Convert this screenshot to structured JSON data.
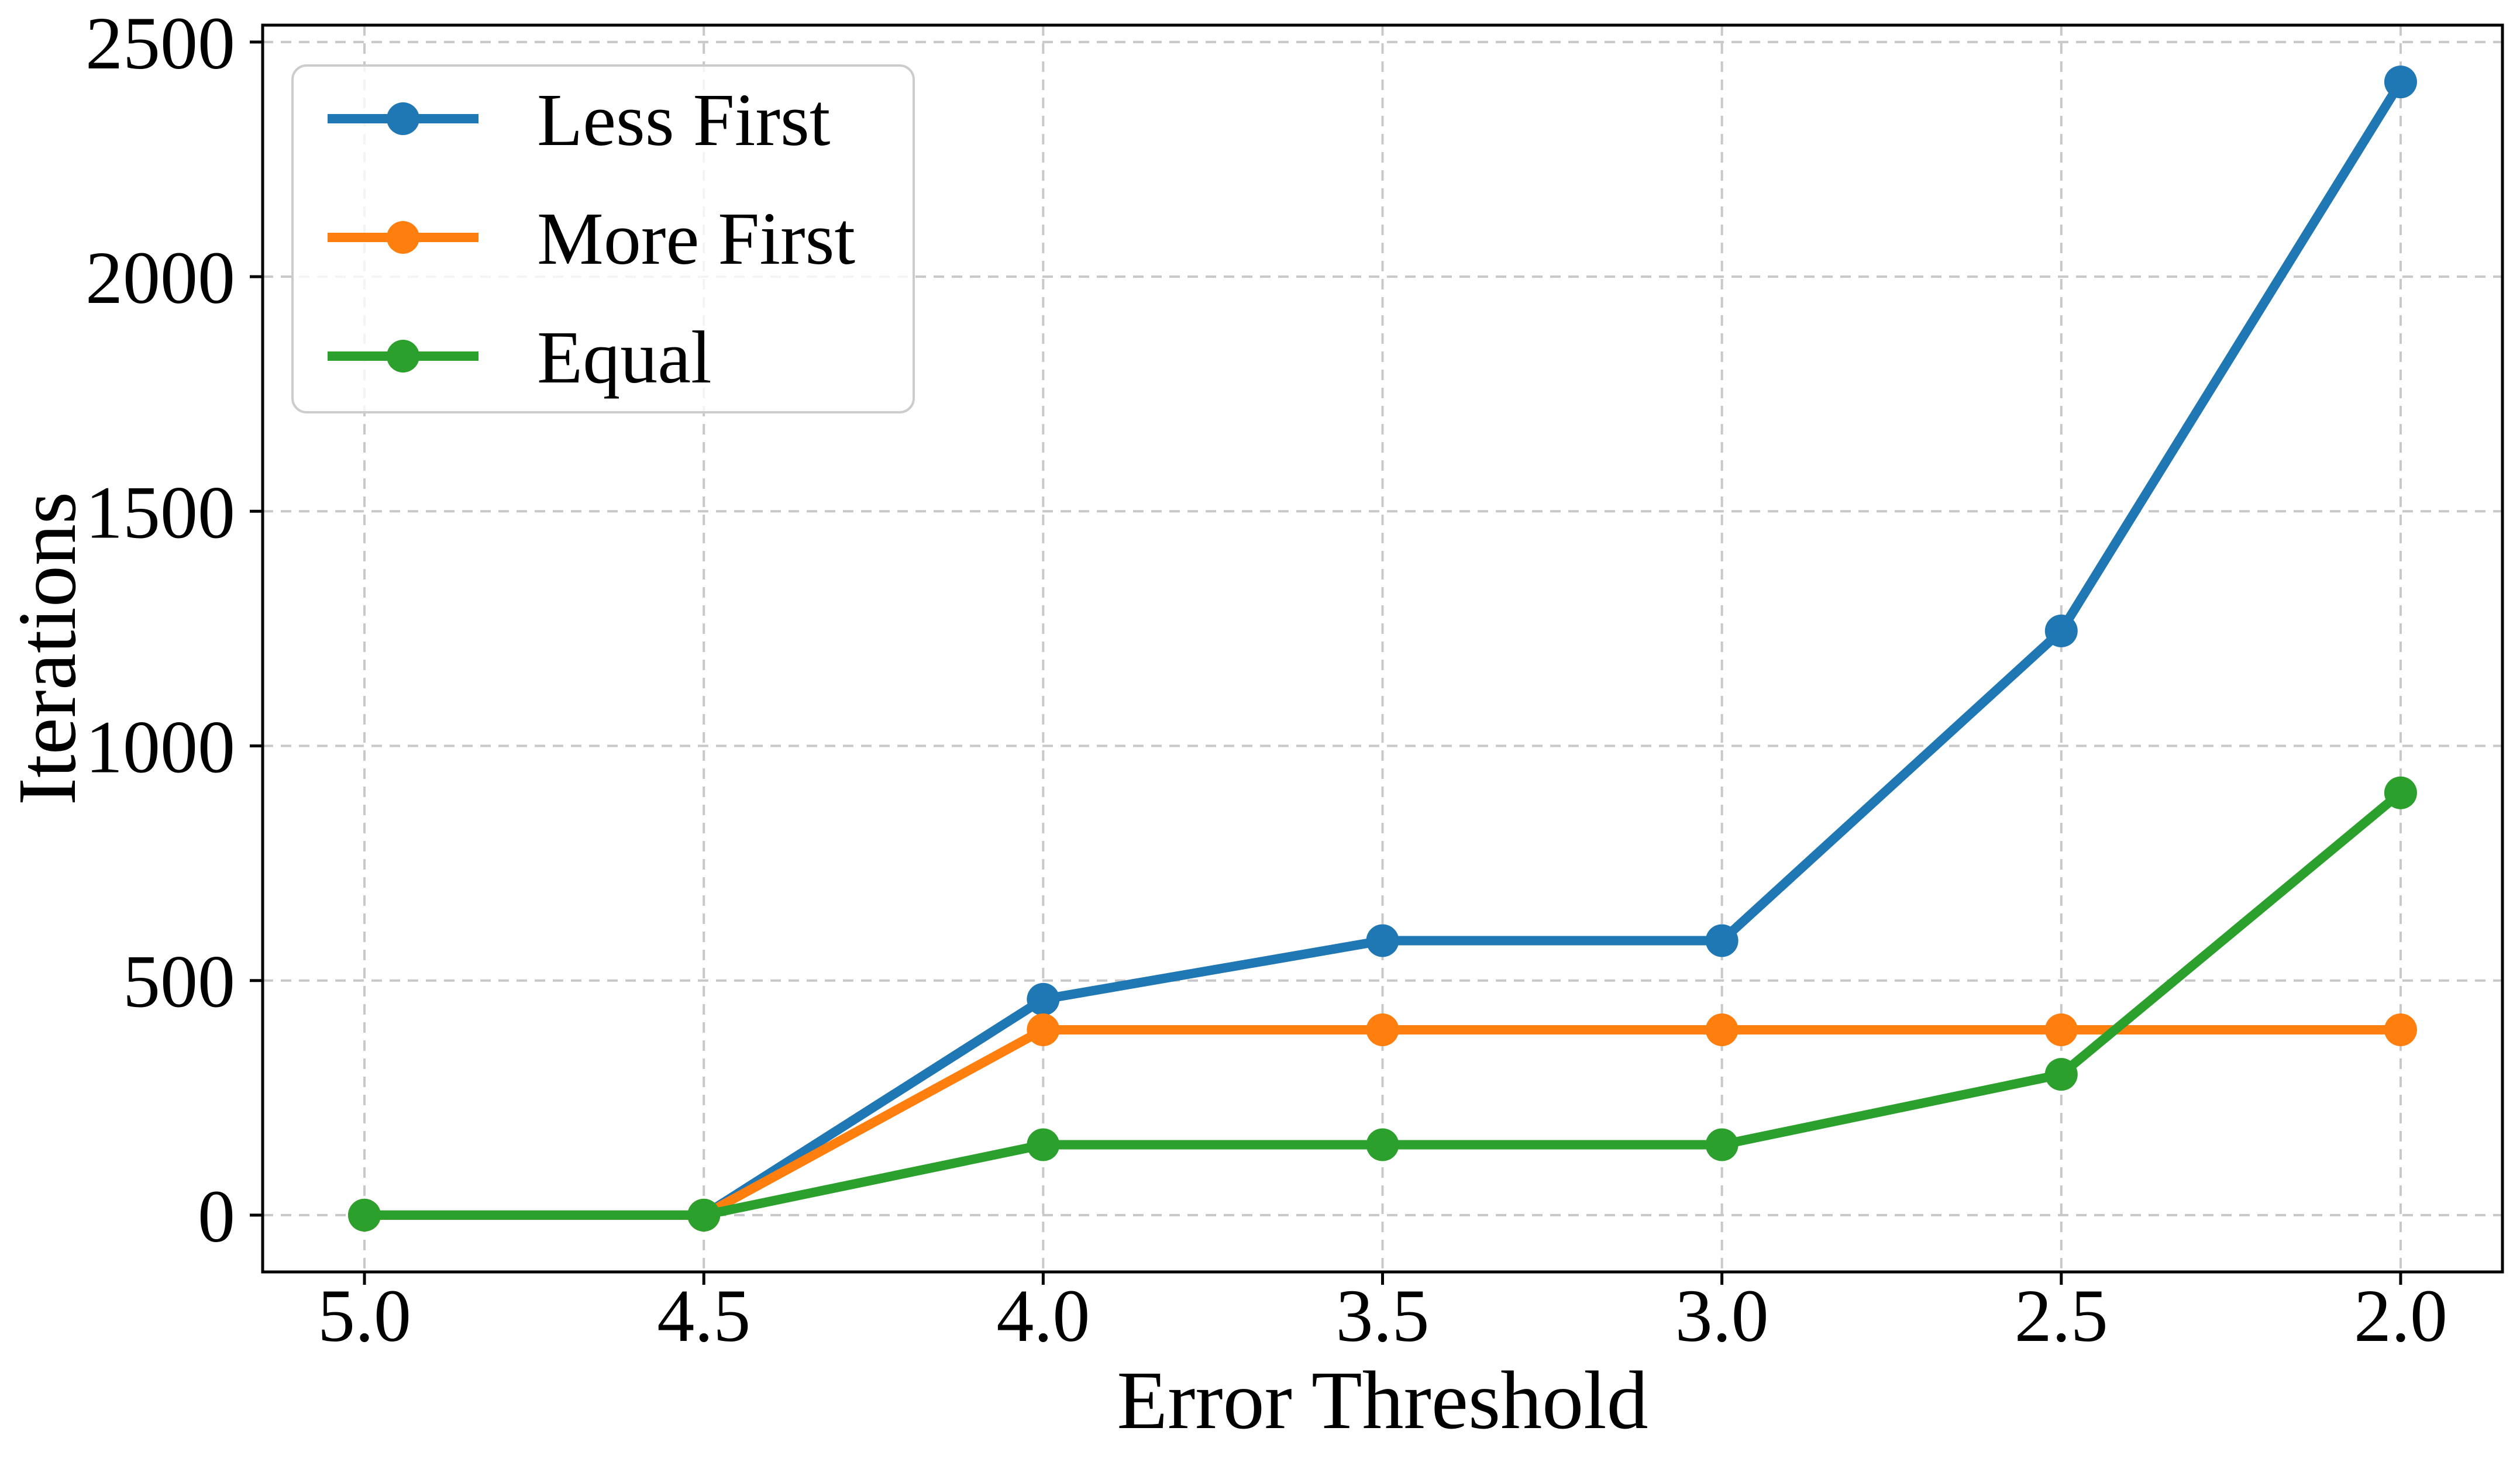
{
  "figure": {
    "background": "#ffffff",
    "axis_color": "#000000"
  },
  "chart_data": {
    "type": "line",
    "title": "",
    "xlabel": "Error Threshold",
    "ylabel": "Iterations",
    "x": [
      5.0,
      4.5,
      4.0,
      3.5,
      3.0,
      2.5,
      2.0
    ],
    "x_ticks": [
      "5.0",
      "4.5",
      "4.0",
      "3.5",
      "3.0",
      "2.5",
      "2.0"
    ],
    "y_ticks": [
      "0",
      "500",
      "1000",
      "1500",
      "2000",
      "2500"
    ],
    "y_tick_values": [
      0,
      500,
      1000,
      1500,
      2000,
      2500
    ],
    "xlim": [
      5.15,
      1.85
    ],
    "ylim": [
      -121,
      2536
    ],
    "x_axis_reversed": true,
    "grid": true,
    "grid_style": "dashed",
    "grid_color": "#c8c8c8",
    "legend_position": "upper left",
    "legend_border_color": "#cccccc",
    "marker": "circle",
    "series": [
      {
        "name": "Less First",
        "color": "#1f77b4",
        "values": [
          0,
          0,
          460,
          585,
          585,
          1245,
          2415
        ]
      },
      {
        "name": "More First",
        "color": "#ff7f0e",
        "values": [
          0,
          0,
          395,
          395,
          395,
          395,
          395
        ]
      },
      {
        "name": "Equal",
        "color": "#2ca02c",
        "values": [
          0,
          0,
          150,
          150,
          150,
          300,
          900
        ]
      }
    ]
  }
}
